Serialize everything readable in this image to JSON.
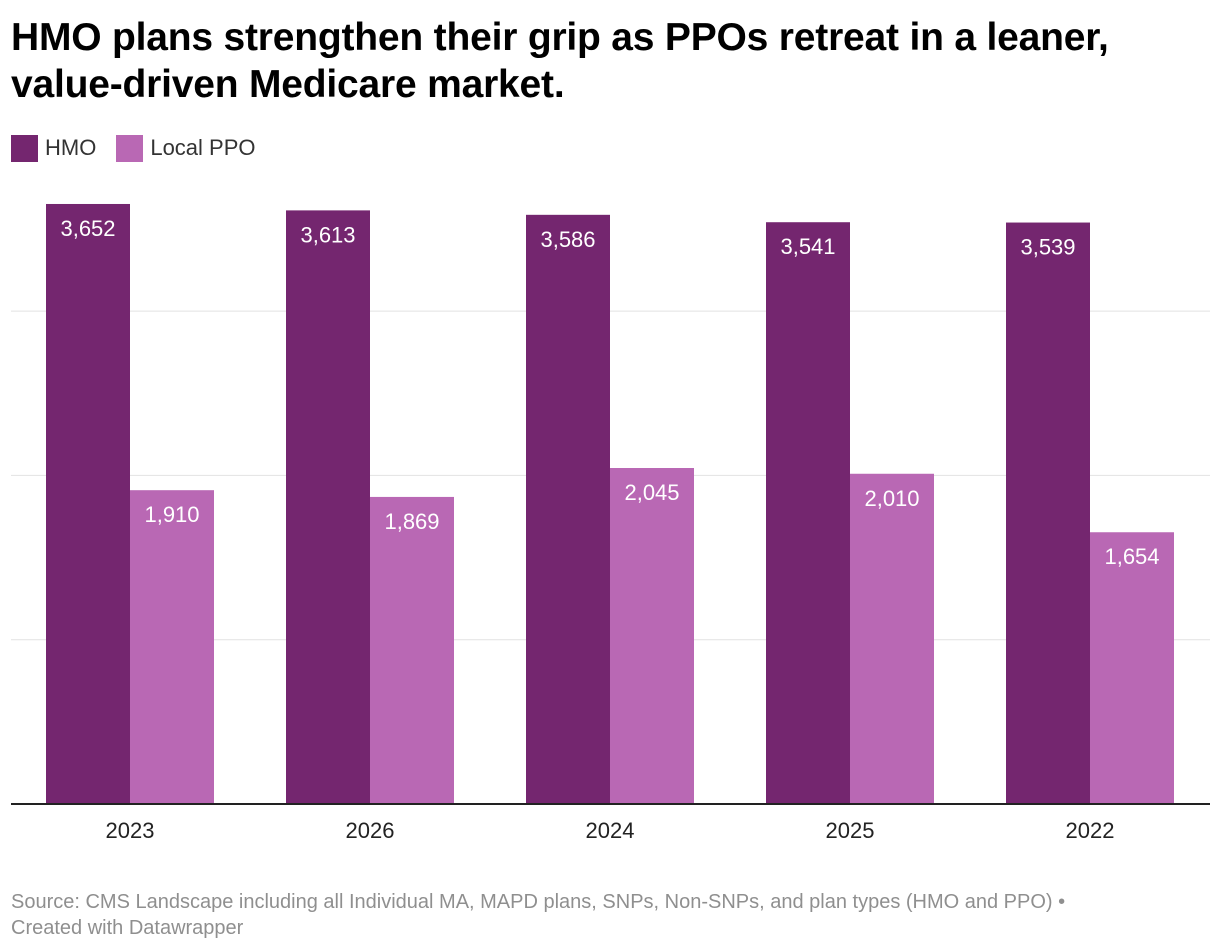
{
  "title": "HMO plans strengthen their grip as PPOs retreat in a leaner, value-driven Medicare market.",
  "legend": [
    {
      "label": "HMO",
      "color": "#74266f"
    },
    {
      "label": "Local PPO",
      "color": "#b968b4"
    }
  ],
  "footer": {
    "source": "Source: CMS Landscape including all Individual MA, MAPD plans, SNPs, Non-SNPs, and plan types (HMO and PPO) •",
    "credit": "Created with Datawrapper"
  },
  "chart_data": {
    "type": "bar",
    "categories": [
      "2023",
      "2026",
      "2024",
      "2025",
      "2022"
    ],
    "series": [
      {
        "name": "HMO",
        "values": [
          3652,
          3613,
          3586,
          3541,
          3539
        ],
        "labels": [
          "3,652",
          "3,613",
          "3,586",
          "3,541",
          "3,539"
        ],
        "color": "#74266f"
      },
      {
        "name": "Local PPO",
        "values": [
          1910,
          1869,
          2045,
          2010,
          1654
        ],
        "labels": [
          "1,910",
          "1,869",
          "2,045",
          "2,010",
          "1,654"
        ],
        "color": "#b968b4"
      }
    ],
    "ylim": [
      0,
      4000
    ],
    "gridlines": [
      1000,
      2000,
      3000
    ],
    "grid": true,
    "legend_position": "top-left",
    "title": "HMO plans strengthen their grip as PPOs retreat in a leaner, value-driven Medicare market.",
    "xlabel": "",
    "ylabel": ""
  }
}
